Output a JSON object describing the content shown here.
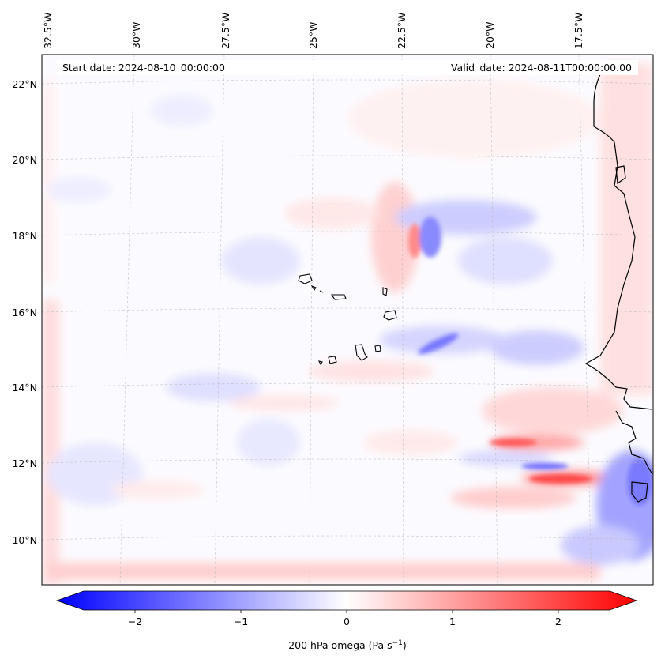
{
  "header": {
    "start_date": "Start date: 2024-08-10_00:00:00",
    "valid_date": "Valid_date: 2024-08-11T00:00:00.00"
  },
  "axes": {
    "longitude_labels": [
      "32.5°W",
      "30°W",
      "27.5°W",
      "25°W",
      "22.5°W",
      "20°W",
      "17.5°W"
    ],
    "latitude_labels": [
      "22°N",
      "20°N",
      "18°N",
      "16°N",
      "14°N",
      "12°N",
      "10°N"
    ]
  },
  "colorbar": {
    "ticks": [
      "−2",
      "−1",
      "0",
      "1",
      "2"
    ],
    "label_main": "200 hPa omega (Pa s",
    "label_sup": "−1",
    "label_close": ")",
    "range": [
      -2.6,
      2.6
    ],
    "colors": {
      "negative": "#0000ff",
      "zero": "#ffffff",
      "positive": "#ff0000"
    }
  },
  "map": {
    "features": [
      "coastline-west-africa",
      "cape-verde-islands"
    ],
    "colors": {
      "coastline": "#000000",
      "gridline": "#b4b4b4",
      "background": "#fbfbff"
    }
  }
}
